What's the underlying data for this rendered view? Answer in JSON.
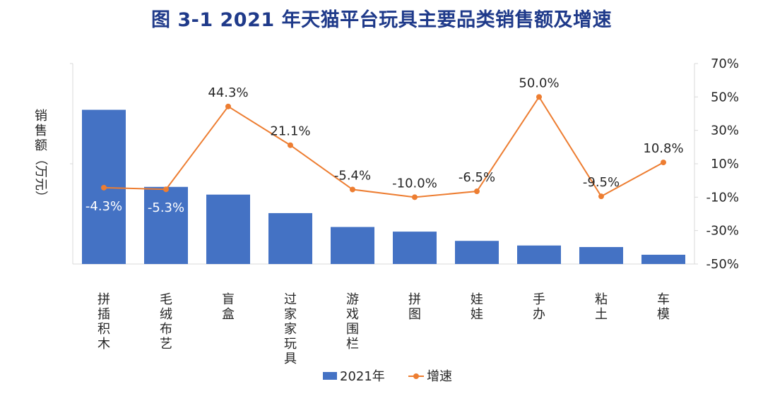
{
  "chart_data": {
    "type": "bar+line",
    "title": "图 3-1 2021 年天猫平台玩具主要品类销售额及增速",
    "ylabel": "销售额（万元）",
    "categories": [
      "拼插积木",
      "毛绒布艺",
      "盲盒",
      "过家家玩具",
      "游戏围栏",
      "拼图",
      "娃娃",
      "手办",
      "粘土",
      "车模"
    ],
    "series": [
      {
        "name": "2021年",
        "kind": "bar",
        "color": "#4472c4",
        "values": [
          100,
          50,
          45,
          33,
          24,
          21,
          15,
          12,
          11,
          6
        ]
      },
      {
        "name": "增速",
        "kind": "line",
        "axis": "right",
        "color": "#ed7d31",
        "values": [
          -4.3,
          -5.3,
          44.3,
          21.1,
          -5.4,
          -10.0,
          -6.5,
          50.0,
          -9.5,
          10.8
        ],
        "labels": [
          "-4.3%",
          "-5.3%",
          "44.3%",
          "21.1%",
          "-5.4%",
          "-10.0%",
          "-6.5%",
          "50.0%",
          "-9.5%",
          "10.8%"
        ]
      }
    ],
    "y_left": {
      "range": [
        0,
        130
      ],
      "ticks_shown": false
    },
    "y_right": {
      "range": [
        -50,
        70
      ],
      "ticks": [
        70,
        50,
        30,
        10,
        -10,
        -30,
        -50
      ],
      "tick_labels": [
        "70%",
        "50%",
        "30%",
        "10%",
        "-10%",
        "-30%",
        "-50%"
      ]
    },
    "legend": {
      "position": "bottom",
      "items": [
        "2021年",
        "增速"
      ]
    }
  }
}
